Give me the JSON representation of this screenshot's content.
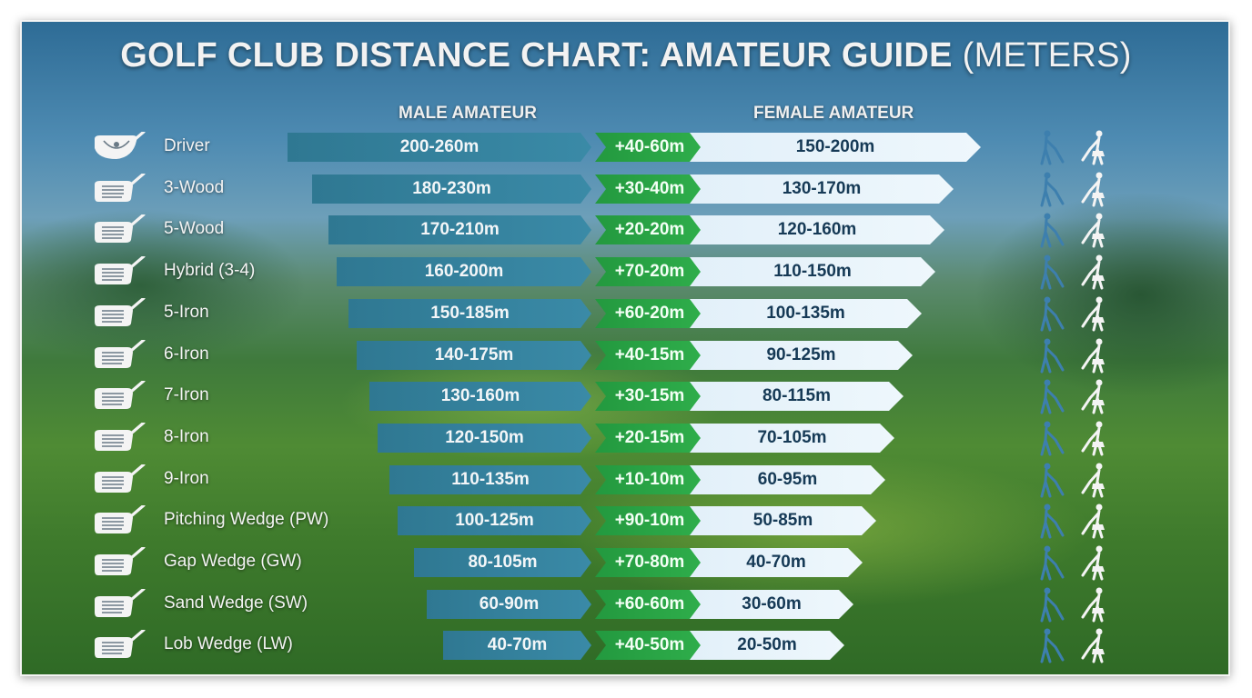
{
  "title": {
    "main": "GOLF CLUB DISTANCE CHART: AMATEUR GUIDE",
    "suffix": "(METERS)"
  },
  "headers": {
    "male": "MALE AMATEUR",
    "female": "FEMALE AMATEUR"
  },
  "colors": {
    "male_bar": "#3a8aa7",
    "diff_bar": "#2fae4b",
    "female_bar": "#eaf5fb",
    "male_icon": "#3d7fae",
    "female_icon": "#f4f4f4"
  },
  "icons": {
    "club": "golf-club-head-icon",
    "male": "male-golfer-icon",
    "female": "female-golfer-icon"
  },
  "rows": [
    {
      "club": "Driver",
      "male": "200-260m",
      "diff": "+40-60m",
      "female": "150-200m"
    },
    {
      "club": "3-Wood",
      "male": "180-230m",
      "diff": "+30-40m",
      "female": "130-170m"
    },
    {
      "club": "5-Wood",
      "male": "170-210m",
      "diff": "+20-20m",
      "female": "120-160m"
    },
    {
      "club": "Hybrid (3-4)",
      "male": "160-200m",
      "diff": "+70-20m",
      "female": "110-150m"
    },
    {
      "club": "5-Iron",
      "male": "150-185m",
      "diff": "+60-20m",
      "female": "100-135m"
    },
    {
      "club": "6-Iron",
      "male": "140-175m",
      "diff": "+40-15m",
      "female": "90-125m"
    },
    {
      "club": "7-Iron",
      "male": "130-160m",
      "diff": "+30-15m",
      "female": "80-115m"
    },
    {
      "club": "8-Iron",
      "male": "120-150m",
      "diff": "+20-15m",
      "female": "70-105m"
    },
    {
      "club": "9-Iron",
      "male": "110-135m",
      "diff": "+10-10m",
      "female": "60-95m"
    },
    {
      "club": "Pitching Wedge (PW)",
      "male": "100-125m",
      "diff": "+90-10m",
      "female": "50-85m"
    },
    {
      "club": "Gap Wedge (GW)",
      "male": "80-105m",
      "diff": "+70-80m",
      "female": "40-70m"
    },
    {
      "club": "Sand Wedge (SW)",
      "male": "60-90m",
      "diff": "+60-60m",
      "female": "30-60m"
    },
    {
      "club": "Lob Wedge (LW)",
      "male": "40-70m",
      "diff": "+40-50m",
      "female": "20-50m"
    }
  ],
  "chart_data": {
    "type": "table",
    "title": "GOLF CLUB DISTANCE CHART: AMATEUR GUIDE (METERS)",
    "categories": [
      "Driver",
      "3-Wood",
      "5-Wood",
      "Hybrid (3-4)",
      "5-Iron",
      "6-Iron",
      "7-Iron",
      "8-Iron",
      "9-Iron",
      "Pitching Wedge (PW)",
      "Gap Wedge (GW)",
      "Sand Wedge (SW)",
      "Lob Wedge (LW)"
    ],
    "series": [
      {
        "name": "MALE AMATEUR",
        "unit": "m",
        "min": [
          200,
          180,
          170,
          160,
          150,
          140,
          130,
          120,
          110,
          100,
          80,
          60,
          40
        ],
        "max": [
          260,
          230,
          210,
          200,
          185,
          175,
          160,
          150,
          135,
          125,
          105,
          90,
          70
        ]
      },
      {
        "name": "FEMALE AMATEUR",
        "unit": "m",
        "min": [
          150,
          130,
          120,
          110,
          100,
          90,
          80,
          70,
          60,
          50,
          40,
          30,
          20
        ],
        "max": [
          200,
          170,
          160,
          150,
          135,
          125,
          115,
          105,
          95,
          85,
          70,
          60,
          50
        ]
      }
    ],
    "differences": [
      "+40-60m",
      "+30-40m",
      "+20-20m",
      "+70-20m",
      "+60-20m",
      "+40-15m",
      "+30-15m",
      "+20-15m",
      "+10-10m",
      "+90-10m",
      "+70-80m",
      "+60-60m",
      "+40-50m"
    ]
  }
}
